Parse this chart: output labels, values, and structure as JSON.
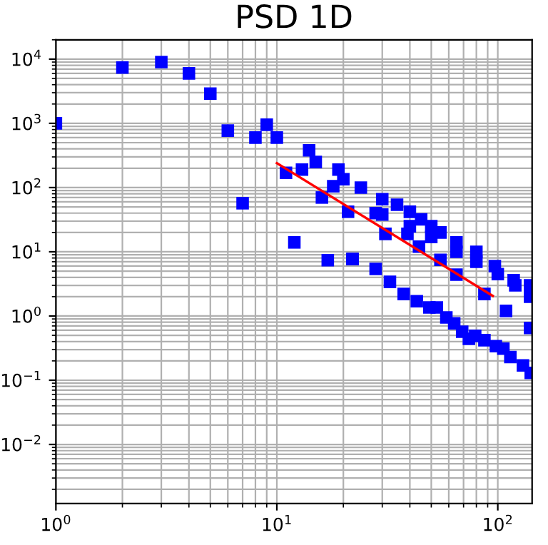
{
  "chart_data": {
    "type": "scatter",
    "title": "PSD 1D",
    "series": [
      {
        "color": "#0000ff",
        "marker": "square",
        "x": [
          1,
          2,
          3,
          4,
          5,
          6,
          7,
          8,
          9,
          10,
          11,
          12,
          13,
          14,
          15,
          16,
          17,
          18,
          19,
          20,
          21,
          22,
          24,
          28,
          30,
          35,
          40,
          45,
          50,
          55,
          65,
          80,
          97,
          118,
          140,
          31,
          39,
          44,
          55,
          65,
          87,
          109,
          140,
          30,
          40,
          50,
          65,
          80,
          100,
          120,
          140,
          22,
          28,
          32.5,
          37.5,
          43,
          49,
          53,
          58.5,
          63.5,
          69,
          74,
          79,
          87,
          98,
          106,
          114,
          130,
          141
        ],
        "values": [
          1000,
          7400,
          9000,
          6000,
          2900,
          770,
          57,
          600,
          950,
          600,
          170,
          14,
          190,
          380,
          250,
          70,
          7.4,
          105,
          190,
          135,
          42,
          7.7,
          100,
          40,
          66,
          54,
          42,
          32,
          25,
          20,
          14,
          10,
          6,
          3.6,
          3,
          19,
          19,
          12,
          7.5,
          4.4,
          2.2,
          1.2,
          0.65,
          38,
          25,
          17,
          10,
          7,
          4.5,
          3,
          2,
          7.7,
          5.4,
          3.4,
          2.2,
          1.7,
          1.36,
          1.36,
          0.95,
          0.77,
          0.57,
          0.44,
          0.49,
          0.42,
          0.34,
          0.31,
          0.23,
          0.17,
          0.13
        ]
      },
      {
        "type": "line",
        "color": "#ff0000",
        "line_style": "solid",
        "x": [
          10,
          95
        ],
        "values": [
          240,
          2.05
        ]
      }
    ],
    "log": "xy",
    "grid": true,
    "xlim": [
      1,
      143
    ],
    "ylim": [
      0.0012,
      20000
    ],
    "xticks": [
      {
        "value": 1,
        "label": "10$^{0}$"
      },
      {
        "value": 10,
        "label": "10$^{1}$"
      },
      {
        "value": 100,
        "label": "10$^{2}$"
      }
    ],
    "yticks": [
      {
        "value": 0.01,
        "label": "10$^{−2}$"
      },
      {
        "value": 0.1,
        "label": "10$^{−1}$"
      },
      {
        "value": 1,
        "label": "10$^{0}$"
      },
      {
        "value": 10,
        "label": "10$^{1}$"
      },
      {
        "value": 100,
        "label": "10$^{2}$"
      },
      {
        "value": 1000,
        "label": "10$^{3}$"
      },
      {
        "value": 10000,
        "label": "10$^{4}$"
      }
    ]
  }
}
